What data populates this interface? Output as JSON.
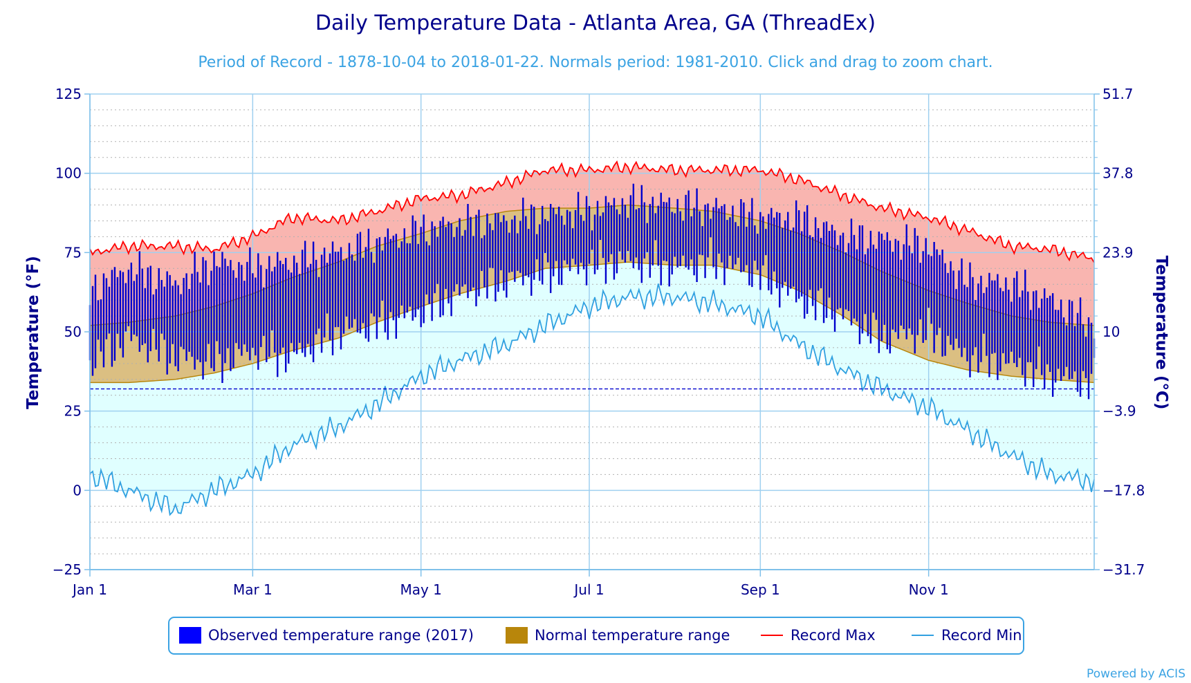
{
  "chart_data": {
    "type": "area",
    "title": "Daily Temperature Data - Atlanta Area, GA (ThreadEx)",
    "subtitle": "Period of Record - 1878-10-04 to 2018-01-22. Normals period: 1981-2010. Click and drag to zoom chart.",
    "ylabel_left": "Temperature (°F)",
    "ylabel_right": "Temperature (°C)",
    "ylim": [
      -25,
      125
    ],
    "y_ticks_left": [
      "125",
      "100",
      "75",
      "50",
      "25",
      "0",
      "−25"
    ],
    "y_ticks_right": [
      "51.7",
      "37.8",
      "23.9",
      "10",
      "−3.9",
      "−17.8",
      "−31.7"
    ],
    "x_ticks": [
      {
        "label": "Jan 1",
        "day": 1
      },
      {
        "label": "Mar 1",
        "day": 60
      },
      {
        "label": "May 1",
        "day": 121
      },
      {
        "label": "Jul 1",
        "day": 182
      },
      {
        "label": "Sep 1",
        "day": 244
      },
      {
        "label": "Nov 1",
        "day": 305
      }
    ],
    "xlim_days": [
      1,
      365
    ],
    "freezing_line_f": 32,
    "grid": true,
    "legend_placement": "bottom-center",
    "series_anchors": {
      "day": [
        1,
        15,
        32,
        46,
        60,
        74,
        91,
        105,
        121,
        135,
        152,
        166,
        182,
        196,
        213,
        227,
        244,
        258,
        274,
        288,
        305,
        319,
        335,
        349,
        365
      ],
      "record_max": [
        75,
        77,
        77,
        76,
        80,
        86,
        85,
        88,
        92,
        93,
        97,
        101,
        101,
        102,
        101,
        101,
        101,
        98,
        93,
        89,
        86,
        82,
        77,
        76,
        73
      ],
      "record_min": [
        5,
        0,
        -6,
        0,
        5,
        14,
        20,
        27,
        36,
        41,
        46,
        52,
        58,
        61,
        61,
        59,
        55,
        46,
        38,
        32,
        26,
        19,
        11,
        5,
        3
      ],
      "normal_high": [
        52,
        53,
        55,
        58,
        62,
        67,
        72,
        77,
        81,
        85,
        88,
        89,
        89,
        90,
        89,
        88,
        85,
        81,
        75,
        69,
        63,
        59,
        55,
        53,
        52
      ],
      "normal_low": [
        34,
        34,
        35,
        37,
        40,
        44,
        48,
        53,
        58,
        62,
        66,
        70,
        71,
        72,
        71,
        71,
        68,
        63,
        55,
        47,
        41,
        38,
        36,
        35,
        34
      ]
    },
    "observed_2017_anchors": {
      "day": [
        1,
        15,
        32,
        46,
        60,
        74,
        91,
        105,
        121,
        135,
        152,
        166,
        182,
        196,
        213,
        227,
        244,
        258,
        274,
        288,
        305,
        319,
        335,
        349,
        365
      ],
      "high": [
        63,
        70,
        65,
        72,
        70,
        72,
        75,
        78,
        82,
        84,
        85,
        87,
        88,
        91,
        90,
        89,
        86,
        86,
        80,
        79,
        77,
        66,
        65,
        60,
        52
      ],
      "low": [
        40,
        48,
        42,
        40,
        44,
        42,
        50,
        52,
        56,
        62,
        66,
        68,
        71,
        72,
        70,
        72,
        68,
        60,
        55,
        48,
        50,
        42,
        40,
        36,
        34
      ]
    },
    "series": [
      {
        "name": "Observed temperature range (2017)",
        "color": "#0000ff"
      },
      {
        "name": "Normal temperature range",
        "color": "#b8860b"
      },
      {
        "name": "Record Max",
        "color": "#ff0000"
      },
      {
        "name": "Record Min",
        "color": "#30a0e0"
      }
    ],
    "colors": {
      "record_max_fill": "#f9b5b0",
      "normal_fill": "#dbbf82",
      "record_min_fill": "#e0ffff",
      "observed": "#0000cd",
      "normal_line": "#b8860b",
      "record_max_line": "#ff0000",
      "record_min_line": "#30a0e0",
      "freezing_line": "#0000cd"
    }
  },
  "credit": "Powered by ACIS"
}
